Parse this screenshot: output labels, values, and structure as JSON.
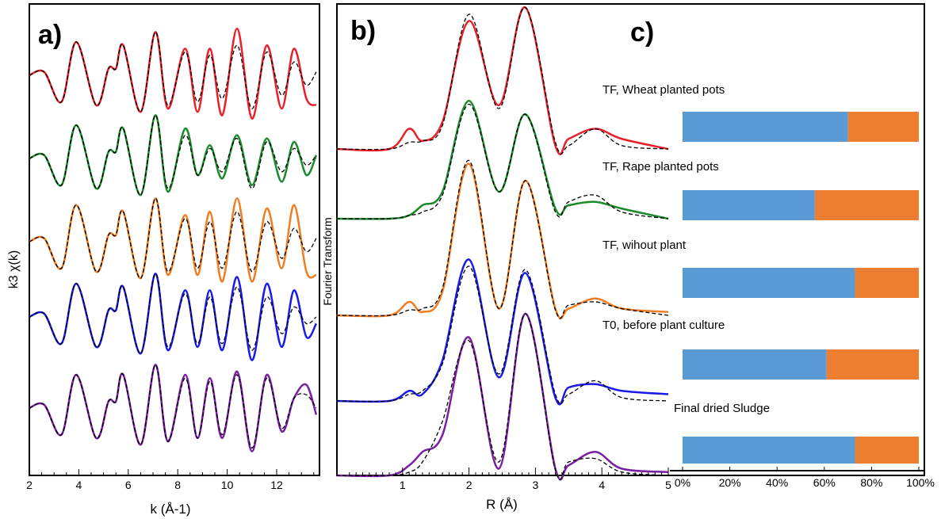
{
  "chart_data": [
    {
      "panel": "a)",
      "type": "line",
      "xlabel": "k (Å-1)",
      "ylabel": "k3 χ(k)",
      "xlim": [
        2,
        13.7
      ],
      "xticks": [
        2,
        4,
        6,
        8,
        10,
        12
      ],
      "x": [
        2.0,
        2.6,
        3.3,
        3.9,
        4.7,
        5.2,
        5.5,
        5.8,
        6.5,
        7.1,
        7.6,
        8.3,
        8.8,
        9.3,
        9.8,
        10.4,
        11.0,
        11.6,
        12.2,
        12.7,
        13.2,
        13.6
      ],
      "series": [
        {
          "color": "#e8202a",
          "exp": [
            0,
            0.1,
            -0.8,
            1.0,
            -0.9,
            0.2,
            0.2,
            0.9,
            -1.1,
            1.3,
            -1.0,
            0.8,
            -1.1,
            0.8,
            -1.2,
            1.4,
            -1.3,
            0.9,
            -1.0,
            0.8,
            -0.7,
            -0.9
          ],
          "fit": [
            0,
            0.1,
            -0.8,
            1.0,
            -0.9,
            0.2,
            0.2,
            0.9,
            -1.1,
            1.3,
            -0.9,
            0.7,
            -0.8,
            0.6,
            -0.7,
            0.9,
            -1.0,
            0.7,
            -0.6,
            0.4,
            -0.3,
            0.1
          ]
        },
        {
          "color": "#1a8a2a",
          "exp": [
            0,
            0.1,
            -0.8,
            1.0,
            -0.9,
            0.2,
            0.2,
            0.9,
            -1.1,
            1.3,
            -1.0,
            0.9,
            -0.5,
            0.4,
            -0.6,
            0.7,
            -0.8,
            0.6,
            -0.7,
            0.5,
            -0.5,
            0.1
          ],
          "fit": [
            0,
            0.1,
            -0.8,
            1.0,
            -0.9,
            0.2,
            0.2,
            0.9,
            -1.1,
            1.3,
            -0.9,
            0.7,
            -0.5,
            0.3,
            -0.4,
            0.6,
            -0.9,
            0.5,
            -0.4,
            0.3,
            -0.2,
            0.1
          ]
        },
        {
          "color": "#f07d20",
          "exp": [
            0,
            0.1,
            -0.8,
            1.1,
            -0.9,
            0.2,
            0.2,
            0.9,
            -1.1,
            1.3,
            -1.0,
            0.8,
            -1.0,
            0.9,
            -1.2,
            1.3,
            -1.2,
            1.0,
            -0.8,
            1.1,
            -0.9,
            -1.0
          ],
          "fit": [
            0,
            0.1,
            -0.8,
            1.1,
            -0.9,
            0.2,
            0.2,
            0.9,
            -1.1,
            1.3,
            -0.9,
            0.7,
            -0.8,
            0.6,
            -0.8,
            0.9,
            -0.9,
            0.6,
            -0.5,
            0.4,
            -0.3,
            0.1
          ]
        },
        {
          "color": "#1a1ae8",
          "exp": [
            0,
            0.1,
            -0.8,
            1.0,
            -0.9,
            0.2,
            0.2,
            0.9,
            -1.1,
            1.3,
            -1.0,
            0.8,
            -0.9,
            0.8,
            -1.0,
            1.2,
            -1.3,
            1.0,
            -0.9,
            0.8,
            -0.6,
            -0.2
          ],
          "fit": [
            0,
            0.1,
            -0.8,
            1.0,
            -0.9,
            0.2,
            0.2,
            0.9,
            -1.1,
            1.3,
            -0.9,
            0.7,
            -0.8,
            0.6,
            -0.8,
            0.9,
            -1.0,
            0.6,
            -0.5,
            0.3,
            -0.2,
            0.0
          ]
        },
        {
          "color": "#7a1fa2",
          "exp": [
            0,
            0.1,
            -0.8,
            1.0,
            -0.9,
            0.2,
            0.2,
            1.0,
            -1.1,
            1.3,
            -1.0,
            1.0,
            -0.9,
            0.9,
            -0.9,
            1.1,
            -1.3,
            1.0,
            -0.7,
            0.3,
            0.7,
            -0.2
          ],
          "fit": [
            0,
            0.1,
            -0.8,
            1.0,
            -0.9,
            0.2,
            0.2,
            1.0,
            -1.1,
            1.3,
            -1.0,
            0.9,
            -0.9,
            0.8,
            -0.8,
            1.0,
            -1.2,
            0.9,
            -0.6,
            0.3,
            0.4,
            0.0
          ]
        }
      ]
    },
    {
      "panel": "b)",
      "type": "line",
      "xlabel": "R (Å)",
      "ylabel": "Fourier Transform",
      "xlim": [
        0,
        5
      ],
      "xticks": [
        1,
        2,
        3,
        4,
        5
      ],
      "x": [
        0,
        0.8,
        1.1,
        1.3,
        1.6,
        2.0,
        2.45,
        2.85,
        3.3,
        3.5,
        3.9,
        4.3,
        5.0
      ],
      "series": [
        {
          "color": "#e8202a",
          "exp": [
            0,
            0,
            0.3,
            0.12,
            0.4,
            1.9,
            0.65,
            2.1,
            0.05,
            0.15,
            0.3,
            0.15,
            0
          ],
          "fit": [
            0,
            0,
            0.1,
            0.12,
            0.35,
            2.0,
            0.6,
            2.1,
            0.1,
            0.05,
            0.3,
            0.05,
            0
          ]
        },
        {
          "color": "#1a8a2a",
          "exp": [
            0,
            0,
            0.05,
            0.2,
            0.4,
            1.75,
            0.4,
            1.55,
            0.15,
            0.2,
            0.25,
            0.15,
            0
          ],
          "fit": [
            0,
            0,
            0.05,
            0.1,
            0.35,
            1.7,
            0.4,
            1.55,
            0.1,
            0.25,
            0.35,
            0.1,
            0
          ]
        },
        {
          "color": "#f07d20",
          "exp": [
            0,
            0,
            0.2,
            0.05,
            0.35,
            2.25,
            0.1,
            2.0,
            0.1,
            0.1,
            0.25,
            0.1,
            0.05
          ],
          "fit": [
            0,
            0,
            0.08,
            0.1,
            0.4,
            2.3,
            0.1,
            2.0,
            0.08,
            0.15,
            0.2,
            0.1,
            0
          ]
        },
        {
          "color": "#1a1ae8",
          "exp": [
            0,
            0,
            0.15,
            0.1,
            0.6,
            2.1,
            0.35,
            1.9,
            0.05,
            0.2,
            0.25,
            0.15,
            0.1
          ],
          "fit": [
            0,
            0,
            0.1,
            0.15,
            0.55,
            2.0,
            0.4,
            1.95,
            0.1,
            0.1,
            0.3,
            0.05,
            0
          ]
        },
        {
          "color": "#7a1fa2",
          "exp": [
            0,
            0,
            0.15,
            0.35,
            0.6,
            2.05,
            0.1,
            2.4,
            0.1,
            0.15,
            0.35,
            0.1,
            0.05
          ],
          "fit": [
            0,
            0,
            0.05,
            0.2,
            0.8,
            2.0,
            0.2,
            2.4,
            0.08,
            0.2,
            0.25,
            0.05,
            0
          ]
        }
      ]
    },
    {
      "panel": "c)",
      "type": "bar",
      "orientation": "horizontal",
      "stacked": true,
      "categories": [
        "TF, Wheat planted pots",
        "TF, Rape planted pots",
        "TF, wihout plant",
        "T0, before plant culture",
        "Final dried Sludge"
      ],
      "series": [
        {
          "color": "#5b9bd5",
          "values": [
            70,
            56,
            73,
            61,
            73
          ]
        },
        {
          "color": "#ed7d31",
          "values": [
            30,
            44,
            27,
            39,
            27
          ]
        }
      ],
      "xticks": [
        "0%",
        "20%",
        "40%",
        "60%",
        "80%",
        "100%"
      ],
      "xlim": [
        0,
        100
      ]
    }
  ]
}
